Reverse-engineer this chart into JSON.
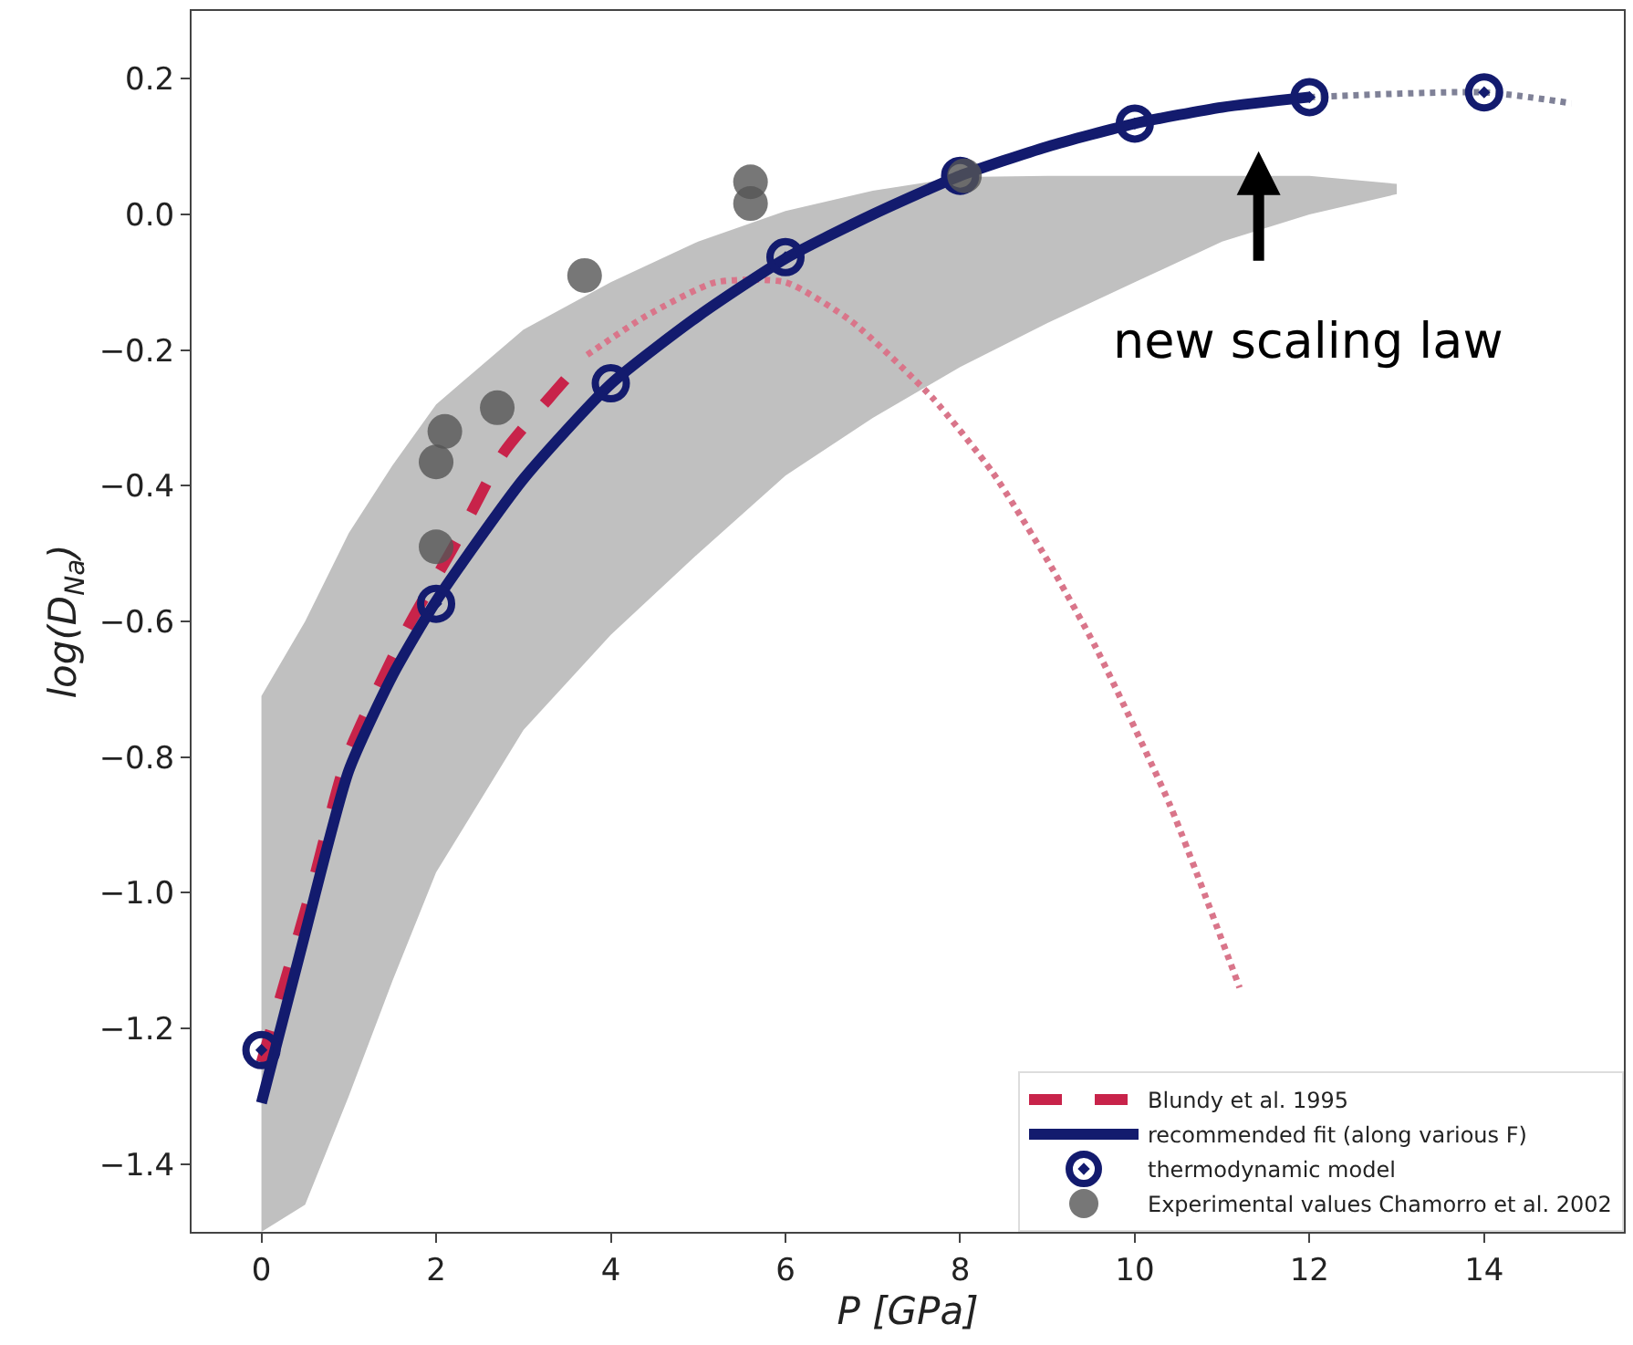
{
  "chart_data": {
    "type": "line",
    "xlabel": "P [GPa]",
    "ylabel": "log(D$_{Na}$)",
    "xlim": [
      -0.8,
      15.6
    ],
    "ylim": [
      -1.5,
      0.3
    ],
    "xticks": [
      0,
      2,
      4,
      6,
      8,
      10,
      12,
      14
    ],
    "yticks": [
      -1.4,
      -1.2,
      {
        "value": -1.0,
        "label": "−1.0"
      },
      -0.8,
      -0.6,
      -0.4,
      -0.2,
      {
        "value": 0.0,
        "label": "0.0"
      },
      0.2
    ],
    "legend": "bottom right",
    "series": [
      {
        "color": "#d9758a",
        "line_style": "dotted",
        "x": [
          3.73,
          4.4,
          5.2,
          6.0,
          6.76,
          7.68,
          8.37,
          9.0,
          9.56,
          10.4,
          11.2
        ],
        "values": [
          -0.207,
          -0.15,
          -0.1,
          -0.1,
          -0.158,
          -0.27,
          -0.38,
          -0.51,
          -0.64,
          -0.87,
          -1.14
        ]
      },
      {
        "color": "#7f8197",
        "line_style": "dotted",
        "x": [
          12,
          14,
          15
        ],
        "values": [
          0.173,
          0.18,
          0.164
        ]
      },
      {
        "name": "Blundy et al. 1995",
        "color": "#c8234a",
        "line_style": "dashed",
        "x": [
          0,
          0.56,
          0.98,
          1.67,
          2.2,
          2.78,
          3.3,
          3.73
        ],
        "values": [
          -1.25,
          -1.0,
          -0.8,
          -0.61,
          -0.49,
          -0.35,
          -0.27,
          -0.207
        ]
      },
      {
        "name": "recommended fit (along various F)",
        "color": "#131b6e",
        "line_style": "solid",
        "x": [
          0,
          0.5,
          1,
          1.5,
          2,
          3,
          4,
          5,
          6,
          7,
          8,
          9,
          10,
          11,
          12,
          13
        ],
        "values": [
          -1.31,
          -1.06,
          -0.82,
          -0.68,
          -0.57,
          -0.39,
          -0.25,
          -0.15,
          -0.065,
          0.0,
          0.057,
          0.1,
          0.134,
          0.158,
          0.173,
          null
        ],
        "upper": [
          -0.71,
          -0.6,
          -0.47,
          -0.37,
          -0.28,
          -0.17,
          -0.1,
          -0.04,
          0.005,
          0.035,
          0.055,
          0.057,
          0.057,
          0.057,
          0.057,
          0.045
        ],
        "lower": [
          -1.5,
          -1.46,
          -1.3,
          -1.13,
          -0.97,
          -0.76,
          -0.62,
          -0.5,
          -0.385,
          -0.3,
          -0.225,
          -0.16,
          -0.1,
          -0.04,
          0.0,
          0.03
        ]
      },
      {
        "type": "scatter",
        "name": "thermodynamic model",
        "color": "#131b6e",
        "marker": "circle",
        "x": [
          0,
          2,
          4,
          6,
          8,
          10,
          12,
          14
        ],
        "values": [
          -1.232,
          -0.574,
          -0.249,
          -0.063,
          0.057,
          0.134,
          0.173,
          0.18
        ]
      },
      {
        "type": "scatter",
        "name": "Experimental values Chamorro et al. 2002",
        "color": "#555555",
        "marker": "circle",
        "x": [
          5.6,
          5.6,
          3.7,
          2.7,
          2.1,
          2.0,
          2.0,
          8.05
        ],
        "values": [
          0.048,
          0.016,
          -0.09,
          -0.285,
          -0.32,
          -0.365,
          -0.49,
          0.057
        ]
      }
    ],
    "annotations": [
      "new scaling law"
    ]
  }
}
